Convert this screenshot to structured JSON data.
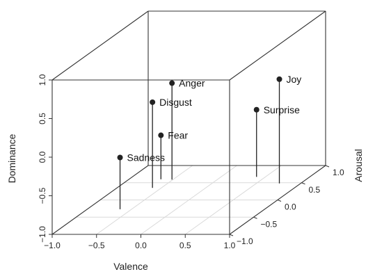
{
  "chart_data": {
    "type": "scatter",
    "projection": "3d-box",
    "xlabel": "Valence",
    "ylabel": "Arousal",
    "zlabel": "Dominance",
    "xlim": [
      -1.0,
      1.0
    ],
    "ylim": [
      -1.0,
      1.0
    ],
    "zlim": [
      -1.0,
      1.0
    ],
    "x_ticks": [
      "−1.0",
      "−0.5",
      "0.0",
      "0.5",
      "1.0"
    ],
    "y_ticks": [
      "−1.0",
      "−0.5",
      "0.0",
      "0.5",
      "1.0"
    ],
    "z_ticks": [
      "−1.0",
      "−0.5",
      "0.0",
      "0.5",
      "1.0"
    ],
    "grid": "floor only",
    "drop_lines": true,
    "points": [
      {
        "label": "Anger",
        "x": -0.51,
        "y": 0.59,
        "z": 0.25
      },
      {
        "label": "Disgust",
        "x": -0.6,
        "y": 0.35,
        "z": 0.11
      },
      {
        "label": "Fear",
        "x": -0.64,
        "y": 0.6,
        "z": -0.43
      },
      {
        "label": "Sadness",
        "x": -0.63,
        "y": -0.27,
        "z": -0.33
      },
      {
        "label": "Joy",
        "x": 0.76,
        "y": 0.48,
        "z": 0.35
      },
      {
        "label": "Surprise",
        "x": 0.4,
        "y": 0.67,
        "z": -0.13
      }
    ]
  },
  "colors": {
    "frame": "#333333",
    "grid": "#d9d9d9",
    "point": "#222222"
  }
}
